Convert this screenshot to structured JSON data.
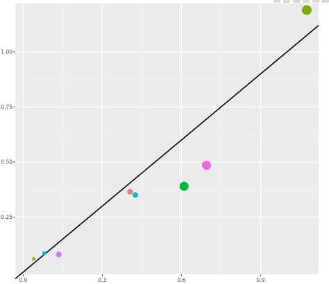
{
  "modebar": {
    "icons": [
      "camera-icon",
      "zoom-icon",
      "pan-icon",
      "autoscale-icon",
      "reset-axes-icon",
      "plotly-logo-icon"
    ]
  },
  "chart_data": {
    "type": "scatter",
    "xlim": [
      -0.03,
      1.12
    ],
    "ylim": [
      -0.01,
      1.22
    ],
    "x_ticks": [
      0.0,
      0.3,
      0.6,
      0.9
    ],
    "x_tick_labels": [
      "0.0",
      "0.3",
      "0.6",
      "0.9"
    ],
    "y_ticks": [
      0.25,
      0.5,
      0.75,
      1.0
    ],
    "y_tick_labels": [
      "0.25",
      "0.50",
      "0.75",
      "1.00"
    ],
    "grid": true,
    "background": "#ebebeb",
    "reference_line": {
      "x": [
        -0.03,
        1.12
      ],
      "y": [
        -0.03,
        1.12
      ],
      "color": "#000000"
    },
    "points": [
      {
        "x": 0.04,
        "y": 0.06,
        "size": 2.5,
        "color": "#b79f00"
      },
      {
        "x": 0.08,
        "y": 0.085,
        "size": 3,
        "color": "#00b4f0"
      },
      {
        "x": 0.135,
        "y": 0.08,
        "size": 4,
        "color": "#c77cff"
      },
      {
        "x": 0.405,
        "y": 0.365,
        "size": 4,
        "color": "#f8766d"
      },
      {
        "x": 0.425,
        "y": 0.35,
        "size": 4,
        "color": "#00bfc4"
      },
      {
        "x": 0.61,
        "y": 0.39,
        "size": 6.5,
        "color": "#00ba38"
      },
      {
        "x": 0.695,
        "y": 0.485,
        "size": 6.5,
        "color": "#f564e3"
      },
      {
        "x": 1.075,
        "y": 1.19,
        "size": 7,
        "color": "#7cae00"
      }
    ]
  }
}
